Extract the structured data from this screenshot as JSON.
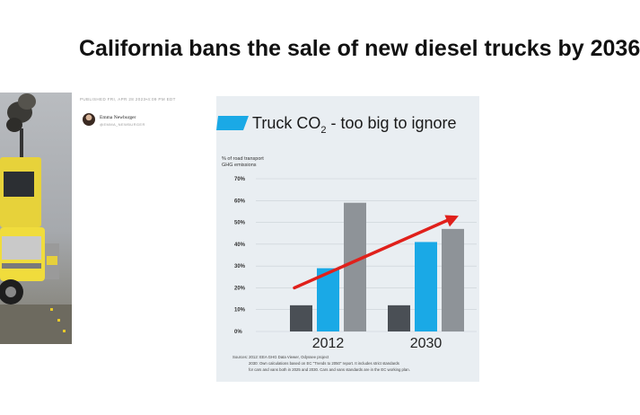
{
  "article": {
    "headline": "California bans the sale of new diesel trucks by 2036",
    "published": "PUBLISHED FRI, APR 28 2023•4:09 PM EDT",
    "author_name": "Emma Newburger",
    "author_handle": "@EMMA_NEWBURGER"
  },
  "chart_data": {
    "type": "bar",
    "title_parts": [
      "Truck CO",
      "2",
      " - too big to ignore"
    ],
    "ylabel_lines": [
      "% of road transport",
      "GHG emissions"
    ],
    "ylim": [
      0,
      70
    ],
    "yticks": [
      "0%",
      "10%",
      "20%",
      "30%",
      "40%",
      "50%",
      "60%",
      "70%"
    ],
    "categories": [
      "2012",
      "2030"
    ],
    "series": [
      {
        "values": [
          12,
          12
        ],
        "color": "#4a4f55"
      },
      {
        "values": [
          29,
          41
        ],
        "color": "#1aa9e6"
      },
      {
        "values": [
          59,
          47
        ],
        "color": "#8e9398"
      }
    ],
    "trend_arrow": {
      "color": "#e0201b"
    },
    "sources": [
      "Sources:   2012: EEA GHG Data Viewer, Odyssee project",
      "2030: Own calculations based on EC \"Trends to 2050\" report. It includes strict standards",
      "for cars and vans both in 2025 and 2030. Cars and vans standards are in the EC working plan."
    ]
  }
}
